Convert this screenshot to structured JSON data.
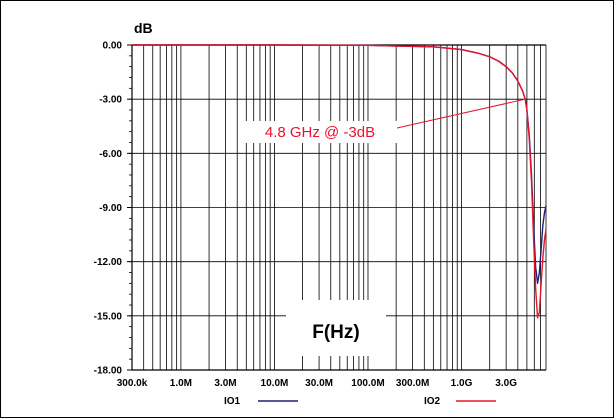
{
  "chart_data": {
    "type": "line",
    "ylabel": "dB",
    "xlabel": "F(Hz)",
    "x_scale": "log",
    "xlim": [
      300000,
      8000000000
    ],
    "ylim": [
      -18,
      0
    ],
    "x_ticks": [
      {
        "value": 300000,
        "label": "300.0k"
      },
      {
        "value": 1000000,
        "label": "1.0M"
      },
      {
        "value": 3000000,
        "label": "3.0M"
      },
      {
        "value": 10000000,
        "label": "10.0M"
      },
      {
        "value": 30000000,
        "label": "30.0M"
      },
      {
        "value": 100000000,
        "label": "100.0M"
      },
      {
        "value": 300000000,
        "label": "300.0M"
      },
      {
        "value": 1000000000,
        "label": "1.0G"
      },
      {
        "value": 3000000000,
        "label": "3.0G"
      }
    ],
    "y_ticks": [
      {
        "value": 0,
        "label": "0.00"
      },
      {
        "value": -3,
        "label": "-3.00"
      },
      {
        "value": -6,
        "label": "-6.00"
      },
      {
        "value": -9,
        "label": "-9.00"
      },
      {
        "value": -12,
        "label": "-12.00"
      },
      {
        "value": -15,
        "label": "-15.00"
      },
      {
        "value": -18,
        "label": "-18.00"
      }
    ],
    "grid": true,
    "legend_position": "bottom",
    "series": [
      {
        "name": "IO1",
        "color": "#1f1f7a",
        "x": [
          300000,
          10000000,
          100000000,
          500000000,
          1000000000,
          1500000000,
          2000000000,
          2500000000,
          3000000000,
          3500000000,
          4000000000,
          4500000000,
          4800000000,
          5000000000,
          5300000000,
          5600000000,
          5900000000,
          6200000000,
          6500000000,
          6800000000,
          7100000000,
          7400000000,
          7700000000,
          8000000000
        ],
        "y": [
          0,
          0,
          -0.02,
          -0.1,
          -0.25,
          -0.45,
          -0.65,
          -0.9,
          -1.2,
          -1.55,
          -2.0,
          -2.55,
          -3.0,
          -3.6,
          -5.0,
          -7.2,
          -10.0,
          -12.3,
          -13.2,
          -12.6,
          -11.3,
          -10.0,
          -9.3,
          -8.9
        ]
      },
      {
        "name": "IO2",
        "color": "#e8132e",
        "x": [
          300000,
          10000000,
          100000000,
          500000000,
          1000000000,
          1500000000,
          2000000000,
          2500000000,
          3000000000,
          3500000000,
          4000000000,
          4500000000,
          4800000000,
          5000000000,
          5300000000,
          5600000000,
          5900000000,
          6200000000,
          6500000000,
          6800000000,
          7100000000,
          7400000000,
          7700000000,
          8000000000
        ],
        "y": [
          0,
          0,
          -0.02,
          -0.1,
          -0.25,
          -0.45,
          -0.65,
          -0.9,
          -1.2,
          -1.55,
          -2.0,
          -2.55,
          -3.0,
          -3.6,
          -5.2,
          -7.6,
          -10.8,
          -13.5,
          -15.1,
          -14.8,
          -13.2,
          -11.8,
          -10.8,
          -10.2
        ]
      }
    ],
    "annotations": [
      {
        "text": "4.8 GHz @ -3dB",
        "x": 4800000000,
        "y": -3,
        "color": "#e8132e"
      }
    ]
  }
}
